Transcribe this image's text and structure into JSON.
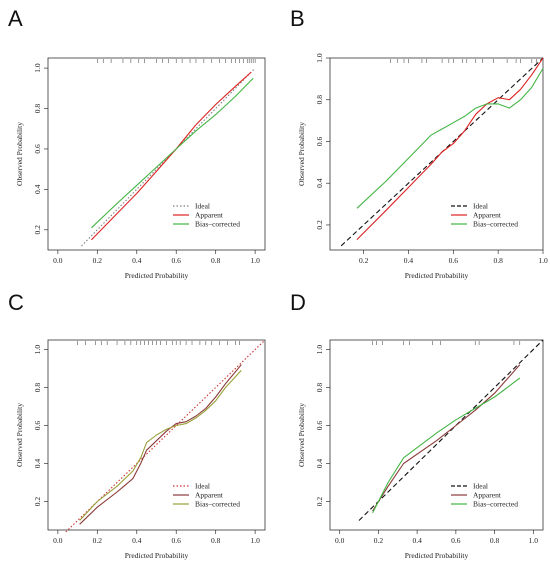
{
  "chart_data": [
    {
      "panel": "A",
      "type": "line",
      "xlabel": "Predicted Probability",
      "ylabel": "Observed Probability",
      "xlim": [
        -0.05,
        1.05
      ],
      "ylim": [
        0.1,
        1.05
      ],
      "xticks": [
        "0.0",
        "0.2",
        "0.4",
        "0.6",
        "0.8",
        "1.0"
      ],
      "yticks": [
        "0.2",
        "0.4",
        "0.6",
        "0.8",
        "1.0"
      ],
      "rug_ticks": [
        0.2,
        0.23,
        0.27,
        0.33,
        0.37,
        0.41,
        0.44,
        0.5,
        0.53,
        0.56,
        0.6,
        0.63,
        0.67,
        0.7,
        0.74,
        0.78,
        0.82,
        0.85,
        0.88,
        0.9,
        0.92,
        0.94,
        0.96,
        0.97,
        0.98,
        0.99,
        1.0
      ],
      "legend": [
        "Ideal",
        "Apparent",
        "Bias–corrected"
      ],
      "series": [
        {
          "name": "Ideal",
          "color": "#7f7f7f",
          "style": "dotted",
          "x": [
            0.12,
            1.0
          ],
          "y": [
            0.12,
            1.0
          ]
        },
        {
          "name": "Apparent",
          "color": "#dd2222",
          "x": [
            0.17,
            0.3,
            0.4,
            0.5,
            0.6,
            0.7,
            0.8,
            0.9,
            0.98
          ],
          "y": [
            0.15,
            0.28,
            0.38,
            0.49,
            0.6,
            0.72,
            0.82,
            0.91,
            0.98
          ]
        },
        {
          "name": "Bias–corrected",
          "color": "#44b544",
          "x": [
            0.17,
            0.3,
            0.4,
            0.5,
            0.6,
            0.7,
            0.8,
            0.9,
            0.99
          ],
          "y": [
            0.21,
            0.33,
            0.42,
            0.51,
            0.6,
            0.69,
            0.77,
            0.86,
            0.95
          ]
        }
      ]
    },
    {
      "panel": "B",
      "type": "line",
      "xlabel": "Predicted Probability",
      "ylabel": "Observed Probability",
      "xlim": [
        0.05,
        1.0
      ],
      "ylim": [
        0.08,
        1.0
      ],
      "xticks": [
        "0.2",
        "0.4",
        "0.6",
        "0.8",
        "1.0"
      ],
      "yticks": [
        "0.2",
        "0.4",
        "0.6",
        "0.8",
        "1.0"
      ],
      "rug_ticks": [
        0.32,
        0.35,
        0.38,
        0.4,
        0.46,
        0.48,
        0.55,
        0.58,
        0.6,
        0.64,
        0.66,
        0.7,
        0.73,
        0.78,
        0.84,
        0.88,
        0.9,
        0.95,
        0.97
      ],
      "legend": [
        "Ideal",
        "Apparent",
        "Bias–corrected"
      ],
      "series": [
        {
          "name": "Ideal",
          "color": "#111111",
          "style": "dashed",
          "x": [
            0.1,
            1.0
          ],
          "y": [
            0.1,
            1.0
          ]
        },
        {
          "name": "Apparent",
          "color": "#dd2222",
          "x": [
            0.17,
            0.3,
            0.4,
            0.5,
            0.55,
            0.6,
            0.65,
            0.7,
            0.75,
            0.8,
            0.85,
            0.9,
            0.95,
            1.0
          ],
          "y": [
            0.13,
            0.27,
            0.38,
            0.49,
            0.55,
            0.59,
            0.65,
            0.73,
            0.78,
            0.81,
            0.8,
            0.85,
            0.92,
            1.0
          ]
        },
        {
          "name": "Bias–corrected",
          "color": "#44b544",
          "x": [
            0.17,
            0.3,
            0.4,
            0.5,
            0.55,
            0.6,
            0.65,
            0.7,
            0.75,
            0.8,
            0.85,
            0.9,
            0.95,
            1.0
          ],
          "y": [
            0.28,
            0.41,
            0.52,
            0.63,
            0.66,
            0.69,
            0.72,
            0.76,
            0.78,
            0.78,
            0.76,
            0.8,
            0.86,
            0.95
          ]
        }
      ]
    },
    {
      "panel": "C",
      "type": "line",
      "xlabel": "Predicted Probability",
      "ylabel": "Observed Probability",
      "xlim": [
        -0.05,
        1.05
      ],
      "ylim": [
        0.05,
        1.05
      ],
      "xticks": [
        "0.0",
        "0.2",
        "0.4",
        "0.6",
        "0.8",
        "1.0"
      ],
      "yticks": [
        "0.2",
        "0.4",
        "0.6",
        "0.8",
        "1.0"
      ],
      "rug_ticks": [
        0.1,
        0.14,
        0.19,
        0.22,
        0.25,
        0.3,
        0.34,
        0.37,
        0.4,
        0.42,
        0.44,
        0.46,
        0.48,
        0.5,
        0.52,
        0.55,
        0.58,
        0.6,
        0.62,
        0.65,
        0.68,
        0.72,
        0.75,
        0.78,
        0.82,
        0.86,
        0.9,
        0.92
      ],
      "legend": [
        "Ideal",
        "Apparent",
        "Bias–corrected"
      ],
      "series": [
        {
          "name": "Ideal",
          "color": "#cc3333",
          "style": "dotted",
          "x": [
            0.04,
            1.05
          ],
          "y": [
            0.04,
            1.05
          ]
        },
        {
          "name": "Apparent",
          "color": "#8b3a3a",
          "x": [
            0.11,
            0.2,
            0.3,
            0.38,
            0.42,
            0.45,
            0.5,
            0.55,
            0.6,
            0.65,
            0.7,
            0.75,
            0.8,
            0.85,
            0.93
          ],
          "y": [
            0.08,
            0.17,
            0.25,
            0.32,
            0.4,
            0.47,
            0.52,
            0.57,
            0.61,
            0.62,
            0.65,
            0.69,
            0.75,
            0.82,
            0.92
          ]
        },
        {
          "name": "Bias–corrected",
          "color": "#9aa03a",
          "x": [
            0.11,
            0.2,
            0.3,
            0.38,
            0.42,
            0.45,
            0.5,
            0.55,
            0.6,
            0.65,
            0.7,
            0.75,
            0.8,
            0.85,
            0.93
          ],
          "y": [
            0.1,
            0.2,
            0.28,
            0.36,
            0.43,
            0.51,
            0.55,
            0.58,
            0.6,
            0.61,
            0.64,
            0.68,
            0.73,
            0.8,
            0.89
          ]
        }
      ]
    },
    {
      "panel": "D",
      "type": "line",
      "xlabel": "Predicted Probability",
      "ylabel": "Observed Probability",
      "xlim": [
        -0.05,
        1.05
      ],
      "ylim": [
        0.05,
        1.05
      ],
      "xticks": [
        "0.0",
        "0.2",
        "0.4",
        "0.6",
        "0.8",
        "1.0"
      ],
      "yticks": [
        "0.2",
        "0.4",
        "0.6",
        "0.8",
        "1.0"
      ],
      "rug_ticks": [
        0.17,
        0.19,
        0.22,
        0.33,
        0.36,
        0.48,
        0.52,
        0.7,
        0.72,
        0.9,
        0.93
      ],
      "legend": [
        "Ideal",
        "Apparent",
        "Bias–corrected"
      ],
      "series": [
        {
          "name": "Ideal",
          "color": "#111111",
          "style": "dashed",
          "x": [
            0.1,
            1.05
          ],
          "y": [
            0.1,
            1.05
          ]
        },
        {
          "name": "Apparent",
          "color": "#8b3a3a",
          "x": [
            0.17,
            0.25,
            0.33,
            0.5,
            0.6,
            0.7,
            0.8,
            0.93
          ],
          "y": [
            0.15,
            0.28,
            0.4,
            0.52,
            0.6,
            0.68,
            0.77,
            0.92
          ]
        },
        {
          "name": "Bias–corrected",
          "color": "#44b544",
          "x": [
            0.17,
            0.25,
            0.33,
            0.5,
            0.6,
            0.7,
            0.8,
            0.93
          ],
          "y": [
            0.14,
            0.3,
            0.43,
            0.56,
            0.63,
            0.69,
            0.75,
            0.85
          ]
        }
      ]
    }
  ]
}
